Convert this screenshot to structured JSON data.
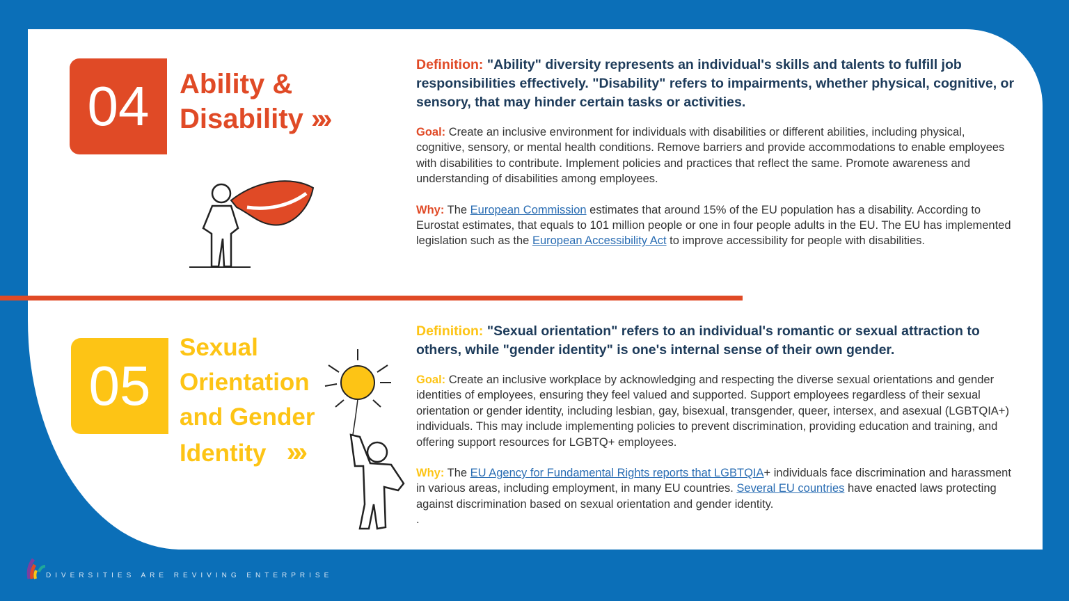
{
  "colors": {
    "background": "#0b6fb8",
    "accent_orange": "#e04a26",
    "accent_yellow": "#fdc415",
    "heading_text": "#1d3b5a",
    "link": "#2a6db3"
  },
  "section4": {
    "number": "04",
    "title_line1": "Ability &",
    "title_line2": "Disability",
    "chevron": "»",
    "definition_label": "Definition:",
    "definition": "\"Ability\" diversity represents an individual's skills and talents to fulfill job responsibilities effectively. \"Disability\" refers to impairments, whether physical, cognitive, or sensory, that may hinder certain tasks or activities.",
    "goal_label": "Goal:",
    "goal": "Create an inclusive environment for individuals with disabilities or different abilities, including physical, cognitive, sensory, or mental health conditions. Remove barriers and provide accommodations to enable employees with disabilities to contribute. Implement policies and practices that reflect the same.  Promote awareness and understanding of disabilities among employees.",
    "why_label": "Why:",
    "why_1": "The ",
    "why_link1": "European Commission",
    "why_2": " estimates that around 15% of the EU population has a disability. According to Eurostat estimates, that equals to 101 million people or one in four people adults in the EU. The EU has implemented legislation such as the ",
    "why_link2": "European Accessibility Act",
    "why_3": " to improve accessibility for people with disabilities."
  },
  "section5": {
    "number": "05",
    "title_line1": "Sexual",
    "title_line2": "Orientation",
    "title_line3": "and Gender",
    "title_line4": "Identity",
    "chevron": "»",
    "definition_label": "Definition:",
    "definition": "\"Sexual orientation\" refers to an individual's romantic or sexual attraction to others, while \"gender identity\" is one's internal sense of their own gender.",
    "goal_label": "Goal:",
    "goal": "Create an inclusive workplace by acknowledging and respecting the diverse sexual orientations and gender identities of employees, ensuring they feel valued and supported. Support employees regardless of their sexual orientation or gender identity, including lesbian, gay, bisexual, transgender, queer, intersex, and asexual (LGBTQIA+) individuals. This may include implementing policies to prevent discrimination, providing education and training, and offering support resources for LGBTQ+ employees.",
    "why_label": "Why:",
    "why_1": "The ",
    "why_link1": "EU Agency for Fundamental Rights reports that LGBTQIA",
    "why_2": "+ individuals face discrimination and harassment in various areas, including employment, in many EU countries. ",
    "why_link2": "Several EU countries",
    "why_3": " have enacted laws protecting against discrimination based on sexual orientation and gender identity.",
    "trailing": "."
  },
  "footer": {
    "tagline": "DIVERSITIES ARE REVIVING ENTERPRISE"
  }
}
